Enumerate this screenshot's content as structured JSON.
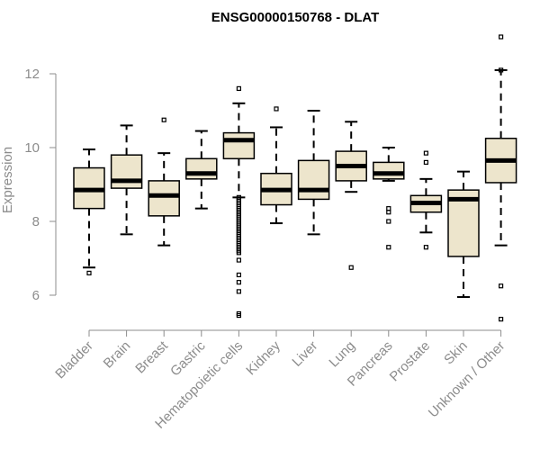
{
  "chart_data": {
    "type": "boxplot",
    "title": "ENSG00000150768 - DLAT",
    "xlabel": "",
    "ylabel": "Expression",
    "ylim": [
      5.2,
      13.0
    ],
    "yticks": [
      6,
      8,
      10,
      12
    ],
    "colors": {
      "box_fill": "#ede5cc",
      "box_stroke": "#000000",
      "median": "#000000",
      "axis": "#8c8c8c",
      "label": "#8c8c8c",
      "title": "#000000"
    },
    "categories": [
      "Bladder",
      "Brain",
      "Breast",
      "Gastric",
      "Hematopoietic cells",
      "Kidney",
      "Liver",
      "Lung",
      "Pancreas",
      "Prostate",
      "Skin",
      "Unknown / Other"
    ],
    "series": [
      {
        "name": "Bladder",
        "whisker_low": 6.75,
        "q1": 8.35,
        "median": 8.85,
        "q3": 9.45,
        "whisker_high": 9.95,
        "outliers": [
          6.6
        ]
      },
      {
        "name": "Brain",
        "whisker_low": 7.65,
        "q1": 8.9,
        "median": 9.1,
        "q3": 9.8,
        "whisker_high": 10.6,
        "outliers": []
      },
      {
        "name": "Breast",
        "whisker_low": 7.35,
        "q1": 8.15,
        "median": 8.7,
        "q3": 9.1,
        "whisker_high": 9.85,
        "outliers": [
          10.75
        ]
      },
      {
        "name": "Gastric",
        "whisker_low": 8.35,
        "q1": 9.15,
        "median": 9.3,
        "q3": 9.7,
        "whisker_high": 10.45,
        "outliers": []
      },
      {
        "name": "Hematopoietic cells",
        "whisker_low": 8.65,
        "q1": 9.7,
        "median": 10.2,
        "q3": 10.4,
        "whisker_high": 11.2,
        "outliers": [
          11.6,
          8.65,
          8.6,
          8.55,
          8.5,
          8.45,
          8.4,
          8.35,
          8.3,
          8.25,
          8.2,
          8.15,
          8.1,
          8.05,
          8.0,
          7.95,
          7.9,
          7.85,
          7.8,
          7.75,
          7.7,
          7.65,
          7.6,
          7.55,
          7.5,
          7.45,
          7.4,
          7.35,
          7.3,
          7.25,
          7.2,
          7.15,
          6.95,
          6.55,
          6.35,
          6.1,
          5.5,
          5.45
        ]
      },
      {
        "name": "Kidney",
        "whisker_low": 7.95,
        "q1": 8.45,
        "median": 8.85,
        "q3": 9.3,
        "whisker_high": 10.55,
        "outliers": [
          11.05
        ]
      },
      {
        "name": "Liver",
        "whisker_low": 7.65,
        "q1": 8.6,
        "median": 8.85,
        "q3": 9.65,
        "whisker_high": 11.0,
        "outliers": []
      },
      {
        "name": "Lung",
        "whisker_low": 8.8,
        "q1": 9.1,
        "median": 9.5,
        "q3": 9.9,
        "whisker_high": 10.7,
        "outliers": [
          6.75
        ]
      },
      {
        "name": "Pancreas",
        "whisker_low": 9.1,
        "q1": 9.15,
        "median": 9.3,
        "q3": 9.6,
        "whisker_high": 10.0,
        "outliers": [
          8.35,
          8.25,
          8.0,
          7.3
        ]
      },
      {
        "name": "Prostate",
        "whisker_low": 7.7,
        "q1": 8.25,
        "median": 8.5,
        "q3": 8.7,
        "whisker_high": 9.15,
        "outliers": [
          9.85,
          9.6,
          7.3
        ]
      },
      {
        "name": "Skin",
        "whisker_low": 5.95,
        "q1": 7.05,
        "median": 8.6,
        "q3": 8.85,
        "whisker_high": 9.35,
        "outliers": []
      },
      {
        "name": "Unknown / Other",
        "whisker_low": 7.35,
        "q1": 9.05,
        "median": 9.65,
        "q3": 10.25,
        "whisker_high": 12.1,
        "outliers": [
          13.0,
          12.1,
          6.25,
          5.35
        ]
      }
    ]
  }
}
